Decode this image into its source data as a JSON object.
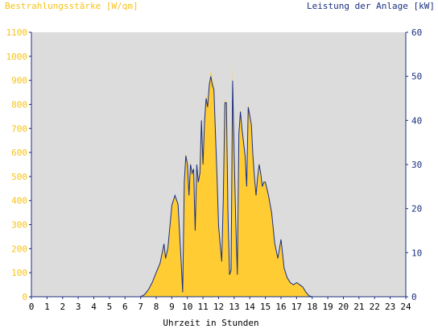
{
  "chart_data": {
    "type": "area",
    "y_left_label": "Bestrahlungsstärke [W/qm]",
    "y_right_label": "Leistung der Anlage [kW]",
    "xlabel": "Uhrzeit in Stunden",
    "xlim": [
      0,
      24
    ],
    "ylim_left": [
      0,
      1100
    ],
    "ylim_right": [
      0,
      60
    ],
    "x_ticks": [
      0,
      1,
      2,
      3,
      4,
      5,
      6,
      7,
      8,
      9,
      10,
      11,
      12,
      13,
      14,
      15,
      16,
      17,
      18,
      19,
      20,
      21,
      22,
      23,
      24
    ],
    "y_left_ticks": [
      0,
      100,
      200,
      300,
      400,
      500,
      600,
      700,
      800,
      900,
      1000,
      1100
    ],
    "y_right_ticks": [
      0,
      10,
      20,
      30,
      40,
      50,
      60
    ],
    "grid": false,
    "colors": {
      "irradiance_fill": "#ffcc33",
      "irradiance_label": "#f7c21a",
      "power_line": "#1a2f80",
      "plot_bg": "#dcdcdc",
      "axis": "#1a2f80"
    },
    "series": [
      {
        "name": "Bestrahlungsstärke [W/qm]",
        "axis": "left",
        "x": [
          0,
          7.0,
          7.25,
          7.5,
          7.75,
          8.0,
          8.25,
          8.5,
          8.6,
          8.75,
          9.0,
          9.2,
          9.4,
          9.6,
          9.7,
          9.8,
          9.9,
          10.0,
          10.1,
          10.2,
          10.3,
          10.4,
          10.5,
          10.6,
          10.7,
          10.8,
          10.9,
          11.0,
          11.1,
          11.2,
          11.3,
          11.4,
          11.5,
          11.6,
          11.7,
          11.8,
          11.9,
          12.0,
          12.1,
          12.2,
          12.3,
          12.4,
          12.5,
          12.6,
          12.7,
          12.8,
          12.9,
          13.0,
          13.1,
          13.2,
          13.3,
          13.4,
          13.5,
          13.6,
          13.7,
          13.8,
          13.9,
          14.0,
          14.1,
          14.2,
          14.3,
          14.4,
          14.5,
          14.6,
          14.7,
          14.8,
          14.9,
          15.0,
          15.2,
          15.4,
          15.6,
          15.8,
          16.0,
          16.2,
          16.4,
          16.6,
          16.8,
          17.0,
          17.2,
          17.4,
          17.6,
          17.8,
          18.0,
          18.2,
          24
        ],
        "values": [
          0,
          0,
          10,
          30,
          60,
          100,
          140,
          220,
          160,
          200,
          380,
          420,
          380,
          150,
          30,
          480,
          600,
          560,
          430,
          560,
          520,
          540,
          280,
          560,
          480,
          520,
          750,
          560,
          740,
          840,
          800,
          880,
          940,
          900,
          880,
          700,
          500,
          300,
          220,
          150,
          400,
          820,
          810,
          360,
          100,
          120,
          960,
          600,
          320,
          100,
          680,
          780,
          700,
          650,
          600,
          460,
          800,
          760,
          720,
          600,
          500,
          420,
          500,
          560,
          520,
          460,
          480,
          480,
          420,
          350,
          220,
          160,
          240,
          120,
          80,
          60,
          50,
          60,
          50,
          40,
          20,
          5,
          0,
          0,
          0
        ]
      },
      {
        "name": "Leistung der Anlage [kW]",
        "axis": "right",
        "x": [
          0,
          7.0,
          7.25,
          7.5,
          7.75,
          8.0,
          8.25,
          8.5,
          8.6,
          8.75,
          9.0,
          9.2,
          9.4,
          9.6,
          9.7,
          9.8,
          9.9,
          10.0,
          10.1,
          10.2,
          10.3,
          10.4,
          10.5,
          10.6,
          10.7,
          10.8,
          10.9,
          11.0,
          11.1,
          11.2,
          11.3,
          11.4,
          11.5,
          11.6,
          11.7,
          11.8,
          11.9,
          12.0,
          12.1,
          12.2,
          12.3,
          12.4,
          12.5,
          12.6,
          12.7,
          12.8,
          12.9,
          13.0,
          13.1,
          13.2,
          13.3,
          13.4,
          13.5,
          13.6,
          13.7,
          13.8,
          13.9,
          14.0,
          14.1,
          14.2,
          14.3,
          14.4,
          14.5,
          14.6,
          14.7,
          14.8,
          14.9,
          15.0,
          15.2,
          15.4,
          15.6,
          15.8,
          16.0,
          16.2,
          16.4,
          16.6,
          16.8,
          17.0,
          17.2,
          17.4,
          17.6,
          17.8,
          18.0,
          18.2,
          24
        ],
        "values": [
          0,
          0,
          0.5,
          1.6,
          3.3,
          5.5,
          7.6,
          12,
          8.7,
          11,
          20.7,
          23,
          21,
          8,
          1,
          26,
          32,
          30,
          23,
          30,
          28,
          29,
          15,
          30,
          26,
          28,
          40,
          30,
          40,
          45,
          43,
          48,
          50,
          48,
          47,
          37,
          27,
          16,
          12,
          8,
          22,
          44,
          44,
          19,
          5,
          6,
          49,
          32,
          17,
          5,
          37,
          42,
          38,
          35,
          32,
          25,
          43,
          41,
          39,
          32,
          27,
          23,
          27,
          30,
          28,
          25,
          26,
          26,
          23,
          19,
          12,
          8.7,
          13,
          6.5,
          4.3,
          3.2,
          2.7,
          3.2,
          2.7,
          2.2,
          1,
          0.2,
          0,
          0,
          0
        ]
      }
    ]
  }
}
